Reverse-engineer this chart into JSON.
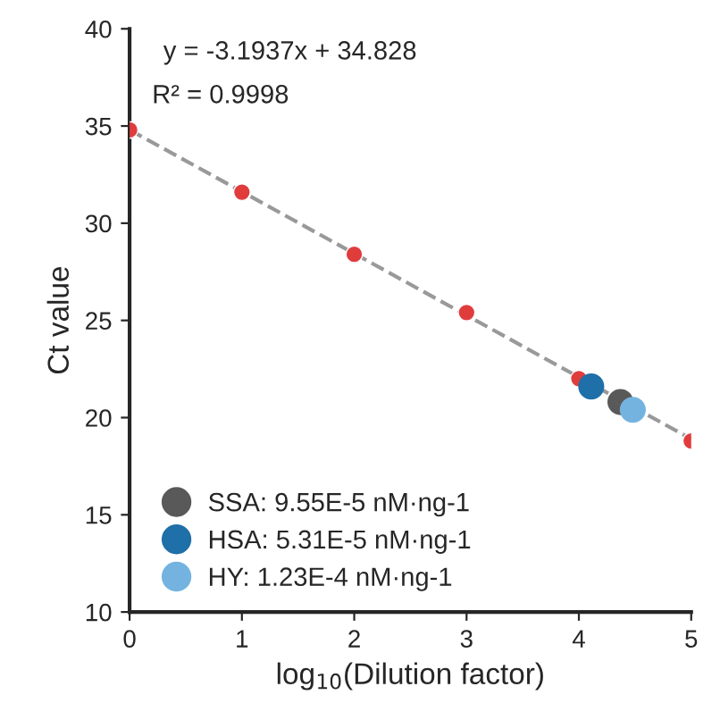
{
  "chart_data": {
    "type": "scatter",
    "xlabel": "log$_{10}$(Dilution factor)",
    "ylabel": "Ct value",
    "annotations": [
      "y = -3.1937x + 34.828",
      "R² = 0.9998"
    ],
    "series": [
      {
        "type": "line",
        "color": "#999999",
        "line_style": "dashed",
        "marker": "none",
        "x": [
          0,
          5
        ],
        "values": [
          34.8,
          18.9
        ]
      },
      {
        "color": "#e03c3c",
        "marker": "circle",
        "x": [
          0,
          1,
          2,
          3,
          4,
          5
        ],
        "values": [
          34.8,
          31.6,
          28.4,
          25.4,
          22.0,
          18.8
        ]
      },
      {
        "name": "SSA: 9.55E-5 nM·ng-1",
        "color": "#595959",
        "marker": "circle",
        "x": [
          4.37
        ],
        "values": [
          20.8
        ]
      },
      {
        "name": "HSA: 5.31E-5 nM·ng-1",
        "color": "#1f6fa8",
        "marker": "circle",
        "x": [
          4.11
        ],
        "values": [
          21.6
        ]
      },
      {
        "name": "HY: 1.23E-4 nM·ng-1",
        "color": "#74b3e0",
        "marker": "circle",
        "x": [
          4.48
        ],
        "values": [
          20.4
        ]
      }
    ],
    "xlim": [
      0,
      5
    ],
    "ylim": [
      10,
      40
    ],
    "xticks": [
      0,
      1,
      2,
      3,
      4,
      5
    ],
    "yticks": [
      10,
      15,
      20,
      25,
      30,
      35,
      40
    ],
    "legend": "bottom left",
    "grid": false
  }
}
